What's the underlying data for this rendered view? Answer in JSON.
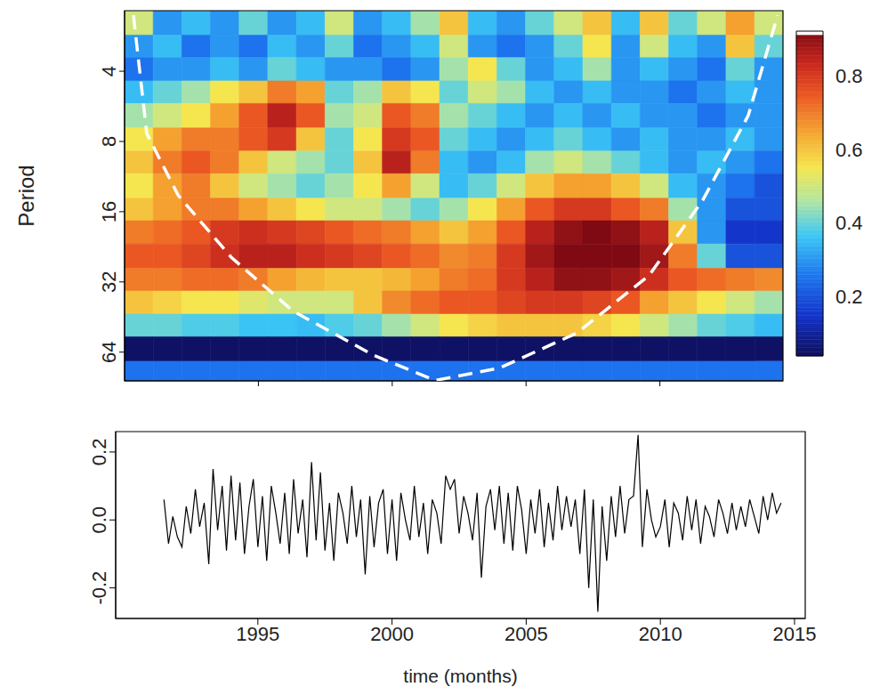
{
  "chart_data": [
    {
      "type": "heatmap",
      "ylabel": "Period",
      "log": "y",
      "tick_labels": "y",
      "xlim": [
        1990,
        2014.6
      ],
      "xticks": [
        1995,
        2000,
        2005,
        2010
      ],
      "ylim": [
        2.2,
        85
      ],
      "yticks": [
        4,
        8,
        16,
        32,
        64
      ],
      "cells": {
        "x_edges": [
          1990,
          1991.07,
          1992.14,
          1993.21,
          1994.28,
          1995.35,
          1996.42,
          1997.49,
          1998.56,
          1999.63,
          2000.7,
          2001.77,
          2002.84,
          2003.91,
          2004.98,
          2006.05,
          2007.12,
          2008.19,
          2009.26,
          2010.33,
          2011.4,
          2012.47,
          2013.54,
          2014.6
        ],
        "period_edges": [
          2.2,
          2.8,
          3.5,
          4.4,
          5.5,
          7,
          8.8,
          11,
          14,
          17.5,
          22,
          28,
          35,
          44,
          55,
          70,
          85
        ],
        "values": [
          [
            0.5,
            0.3,
            0.35,
            0.3,
            0.4,
            0.3,
            0.35,
            0.5,
            0.3,
            0.35,
            0.45,
            0.6,
            0.35,
            0.3,
            0.4,
            0.5,
            0.6,
            0.35,
            0.6,
            0.4,
            0.5,
            0.65,
            0.5
          ],
          [
            0.3,
            0.35,
            0.25,
            0.3,
            0.25,
            0.35,
            0.3,
            0.4,
            0.25,
            0.3,
            0.35,
            0.5,
            0.3,
            0.25,
            0.3,
            0.4,
            0.55,
            0.3,
            0.5,
            0.35,
            0.3,
            0.6,
            0.4
          ],
          [
            0.25,
            0.3,
            0.3,
            0.35,
            0.3,
            0.4,
            0.35,
            0.3,
            0.3,
            0.25,
            0.3,
            0.45,
            0.55,
            0.4,
            0.3,
            0.35,
            0.45,
            0.3,
            0.35,
            0.3,
            0.25,
            0.4,
            0.3
          ],
          [
            0.35,
            0.4,
            0.45,
            0.55,
            0.6,
            0.7,
            0.65,
            0.4,
            0.45,
            0.6,
            0.55,
            0.4,
            0.5,
            0.45,
            0.35,
            0.3,
            0.35,
            0.3,
            0.3,
            0.25,
            0.3,
            0.35,
            0.3
          ],
          [
            0.45,
            0.5,
            0.55,
            0.65,
            0.75,
            0.85,
            0.75,
            0.45,
            0.5,
            0.75,
            0.7,
            0.45,
            0.4,
            0.35,
            0.3,
            0.35,
            0.3,
            0.35,
            0.3,
            0.3,
            0.25,
            0.3,
            0.3
          ],
          [
            0.55,
            0.65,
            0.7,
            0.7,
            0.75,
            0.8,
            0.6,
            0.4,
            0.55,
            0.8,
            0.75,
            0.4,
            0.35,
            0.3,
            0.35,
            0.4,
            0.35,
            0.3,
            0.35,
            0.3,
            0.3,
            0.35,
            0.3
          ],
          [
            0.6,
            0.7,
            0.75,
            0.7,
            0.6,
            0.5,
            0.45,
            0.4,
            0.6,
            0.85,
            0.7,
            0.35,
            0.3,
            0.35,
            0.45,
            0.5,
            0.45,
            0.4,
            0.35,
            0.3,
            0.35,
            0.3,
            0.25
          ],
          [
            0.55,
            0.65,
            0.7,
            0.6,
            0.5,
            0.45,
            0.4,
            0.45,
            0.55,
            0.65,
            0.5,
            0.35,
            0.4,
            0.5,
            0.6,
            0.65,
            0.65,
            0.6,
            0.5,
            0.35,
            0.3,
            0.25,
            0.2
          ],
          [
            0.6,
            0.65,
            0.7,
            0.7,
            0.65,
            0.6,
            0.55,
            0.5,
            0.5,
            0.45,
            0.4,
            0.45,
            0.55,
            0.65,
            0.75,
            0.8,
            0.8,
            0.75,
            0.7,
            0.45,
            0.3,
            0.2,
            0.2
          ],
          [
            0.7,
            0.72,
            0.75,
            0.8,
            0.82,
            0.8,
            0.78,
            0.75,
            0.72,
            0.7,
            0.65,
            0.6,
            0.65,
            0.75,
            0.85,
            0.9,
            0.92,
            0.9,
            0.85,
            0.6,
            0.3,
            0.15,
            0.15
          ],
          [
            0.75,
            0.75,
            0.78,
            0.82,
            0.85,
            0.85,
            0.82,
            0.8,
            0.78,
            0.75,
            0.72,
            0.68,
            0.7,
            0.8,
            0.88,
            0.92,
            0.93,
            0.92,
            0.88,
            0.7,
            0.4,
            0.2,
            0.2
          ],
          [
            0.7,
            0.7,
            0.72,
            0.72,
            0.7,
            0.65,
            0.62,
            0.6,
            0.6,
            0.62,
            0.65,
            0.7,
            0.72,
            0.8,
            0.85,
            0.9,
            0.9,
            0.88,
            0.82,
            0.75,
            0.72,
            0.7,
            0.68
          ],
          [
            0.6,
            0.58,
            0.55,
            0.55,
            0.52,
            0.5,
            0.5,
            0.5,
            0.6,
            0.68,
            0.72,
            0.75,
            0.75,
            0.78,
            0.8,
            0.8,
            0.78,
            0.75,
            0.65,
            0.6,
            0.55,
            0.5,
            0.45
          ],
          [
            0.4,
            0.4,
            0.38,
            0.38,
            0.36,
            0.36,
            0.35,
            0.38,
            0.4,
            0.45,
            0.5,
            0.55,
            0.58,
            0.6,
            0.6,
            0.6,
            0.58,
            0.55,
            0.5,
            0.45,
            0.4,
            0.38,
            0.35
          ],
          [
            0.05,
            0.05,
            0.05,
            0.05,
            0.05,
            0.05,
            0.05,
            0.05,
            0.05,
            0.05,
            0.05,
            0.05,
            0.05,
            0.05,
            0.05,
            0.05,
            0.05,
            0.05,
            0.05,
            0.05,
            0.05,
            0.05,
            0.05
          ],
          [
            0.25,
            0.25,
            0.25,
            0.25,
            0.25,
            0.25,
            0.25,
            0.25,
            0.25,
            0.25,
            0.25,
            0.25,
            0.25,
            0.25,
            0.25,
            0.25,
            0.25,
            0.25,
            0.25,
            0.25,
            0.25,
            0.25,
            0.25
          ]
        ]
      },
      "colorbar_range": [
        0.04,
        0.92
      ],
      "colorbar_ticks": [
        0.2,
        0.4,
        0.6,
        0.8
      ],
      "cone_of_influence": {
        "color": "#ffffff",
        "line_style": "dashed",
        "x": [
          1990.33,
          1990.83,
          1992.0,
          1994.0,
          1996.3,
          1999.3,
          2001.6,
          2004.0,
          2006.9,
          2009.6,
          2011.6,
          2013.3,
          2014.4
        ],
        "period": [
          2.3,
          7.4,
          13.6,
          25.2,
          42.7,
          66,
          84.6,
          75,
          53,
          30,
          14.3,
          6.2,
          2.3
        ]
      }
    },
    {
      "type": "line",
      "xlabel": "time (months)",
      "color": "#000000",
      "xlim": [
        1989.7,
        2015.4
      ],
      "xticks": [
        1995,
        2000,
        2005,
        2010,
        2015
      ],
      "ylim": [
        -0.29,
        0.26
      ],
      "yticks": [
        -0.2,
        {
          "value": 0,
          "label": "0.0"
        },
        0.2
      ],
      "x": [
        1991.5,
        1991.67,
        1991.83,
        1992,
        1992.17,
        1992.33,
        1992.5,
        1992.67,
        1992.83,
        1993,
        1993.17,
        1993.33,
        1993.5,
        1993.67,
        1993.83,
        1994,
        1994.17,
        1994.33,
        1994.5,
        1994.67,
        1994.83,
        1995,
        1995.17,
        1995.33,
        1995.5,
        1995.67,
        1995.83,
        1996,
        1996.17,
        1996.33,
        1996.5,
        1996.67,
        1996.83,
        1997,
        1997.17,
        1997.33,
        1997.5,
        1997.67,
        1997.83,
        1998,
        1998.17,
        1998.33,
        1998.5,
        1998.67,
        1998.83,
        1999,
        1999.17,
        1999.33,
        1999.5,
        1999.67,
        1999.83,
        2000,
        2000.17,
        2000.33,
        2000.5,
        2000.67,
        2000.83,
        2001,
        2001.17,
        2001.33,
        2001.5,
        2001.67,
        2001.83,
        2002,
        2002.17,
        2002.33,
        2002.5,
        2002.67,
        2002.83,
        2003,
        2003.17,
        2003.33,
        2003.5,
        2003.67,
        2003.83,
        2004,
        2004.17,
        2004.33,
        2004.5,
        2004.67,
        2004.83,
        2005,
        2005.17,
        2005.33,
        2005.5,
        2005.67,
        2005.83,
        2006,
        2006.17,
        2006.33,
        2006.5,
        2006.67,
        2006.83,
        2007,
        2007.17,
        2007.33,
        2007.5,
        2007.67,
        2007.83,
        2008,
        2008.17,
        2008.33,
        2008.5,
        2008.67,
        2008.83,
        2009,
        2009.17,
        2009.33,
        2009.5,
        2009.67,
        2009.83,
        2010,
        2010.17,
        2010.33,
        2010.5,
        2010.67,
        2010.83,
        2011,
        2011.17,
        2011.33,
        2011.5,
        2011.67,
        2011.83,
        2012,
        2012.17,
        2012.33,
        2012.5,
        2012.67,
        2012.83,
        2013,
        2013.17,
        2013.33,
        2013.5,
        2013.67,
        2013.83,
        2014,
        2014.17,
        2014.33,
        2014.5
      ],
      "values": [
        0.06,
        -0.07,
        0.01,
        -0.05,
        -0.08,
        0.04,
        -0.04,
        0.09,
        -0.02,
        0.05,
        -0.13,
        0.15,
        -0.03,
        0.1,
        -0.09,
        0.13,
        -0.06,
        0.11,
        -0.1,
        0.04,
        0.12,
        -0.08,
        0.07,
        -0.12,
        0.1,
        0.02,
        -0.07,
        0.08,
        -0.1,
        0.12,
        -0.04,
        0.06,
        -0.11,
        0.17,
        -0.06,
        0.14,
        -0.09,
        0.05,
        -0.12,
        0.08,
        0.02,
        -0.07,
        0.1,
        -0.05,
        0.06,
        -0.16,
        0.07,
        -0.08,
        0.05,
        0.09,
        -0.1,
        0.06,
        -0.12,
        0.08,
        0.0,
        -0.06,
        0.1,
        -0.05,
        0.05,
        -0.1,
        0.06,
        0.02,
        -0.07,
        0.13,
        0.09,
        0.12,
        -0.04,
        0.07,
        0.02,
        -0.06,
        0.08,
        -0.17,
        0.04,
        0.09,
        -0.03,
        0.1,
        -0.07,
        0.08,
        -0.09,
        0.1,
        0.03,
        -0.1,
        0.06,
        -0.04,
        0.09,
        -0.08,
        0.05,
        -0.06,
        0.1,
        -0.03,
        0.07,
        -0.02,
        0.06,
        -0.1,
        0.09,
        -0.2,
        0.06,
        -0.27,
        0.04,
        -0.12,
        0.07,
        -0.05,
        0.1,
        -0.04,
        0.06,
        0.07,
        0.25,
        -0.08,
        0.09,
        0.0,
        -0.05,
        -0.02,
        0.06,
        -0.08,
        0.05,
        0.02,
        -0.06,
        0.07,
        -0.03,
        0.06,
        -0.07,
        0.04,
        0.01,
        -0.05,
        0.06,
        0.02,
        -0.04,
        0.05,
        -0.03,
        0.04,
        -0.02,
        0.06,
        0.01,
        -0.04,
        0.07,
        0.0,
        0.08,
        0.02,
        0.05
      ]
    }
  ]
}
